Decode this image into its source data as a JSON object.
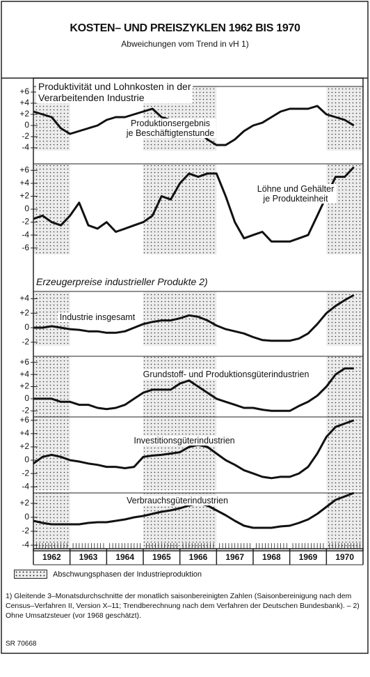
{
  "header": {
    "title": "KOSTEN– UND PREISZYKLEN 1962 BIS 1970",
    "subtitle": "Abweichungen vom Trend in vH 1)"
  },
  "x_axis": {
    "xlim": [
      1962,
      1971
    ],
    "categories": [
      "1962",
      "1963",
      "1964",
      "1965",
      "1966",
      "1967",
      "1968",
      "1969",
      "1970"
    ]
  },
  "shaded_periods": [
    [
      1962,
      1963
    ],
    [
      1965,
      1967
    ],
    [
      1970,
      1971
    ]
  ],
  "legend_label": "Abschwungsphasen der Industrieproduktion",
  "section_heading": "Erzeugerpreise industrieller Produkte 2)",
  "footnote": "1) Gleitende 3–Monatsdurchschnitte der monatlich saisonbereinigten Zahlen (Saisonbereinigung nach dem Census–Verfahren II, Version X–11; Trendberechnung nach dem Verfahren der Deutschen Bundesbank). – 2) Ohne Umsatzsteuer (vor 1968 geschätzt).",
  "source": "SR 70668",
  "chart_data": [
    {
      "type": "line",
      "title": [
        "Produktivität und Lohnkosten in der",
        "Verarbeitenden Industrie"
      ],
      "ylim": [
        -4.5,
        7
      ],
      "yticks": [
        {
          "value": 6,
          "label": "+6"
        },
        {
          "value": 4,
          "label": "+4"
        },
        {
          "value": 2,
          "label": "+2"
        },
        0,
        -2,
        -4
      ],
      "x": [
        1962,
        1962.25,
        1962.5,
        1962.75,
        1963,
        1963.25,
        1963.5,
        1963.75,
        1964,
        1964.25,
        1964.5,
        1964.75,
        1965,
        1965.25,
        1965.5,
        1965.75,
        1966,
        1966.25,
        1966.5,
        1966.75,
        1967,
        1967.25,
        1967.5,
        1967.75,
        1968,
        1968.25,
        1968.5,
        1968.75,
        1969,
        1969.25,
        1969.5,
        1969.75,
        1970,
        1970.25,
        1970.5,
        1970.75
      ],
      "series": [
        {
          "label": [
            "Produktionsergebnis",
            "je Beschäftigtenstunde"
          ],
          "color": "#111111",
          "values": [
            2.5,
            2,
            1.5,
            -0.5,
            -1.5,
            -1,
            -0.5,
            0,
            1,
            1.5,
            1.5,
            2,
            2.5,
            3,
            1.5,
            1,
            0.5,
            0,
            -1,
            -2.5,
            -3.5,
            -3.5,
            -2.5,
            -1,
            0,
            0.5,
            1.5,
            2.5,
            3,
            3,
            3,
            3.5,
            2,
            1.5,
            1,
            0
          ]
        }
      ]
    },
    {
      "type": "line",
      "ylim": [
        -7,
        7
      ],
      "yticks": [
        {
          "value": 6,
          "label": "+6"
        },
        {
          "value": 4,
          "label": "+4"
        },
        {
          "value": 2,
          "label": "+2"
        },
        0,
        -2,
        -4,
        -6
      ],
      "x": [
        1962,
        1962.25,
        1962.5,
        1962.75,
        1963,
        1963.25,
        1963.5,
        1963.75,
        1964,
        1964.25,
        1964.5,
        1964.75,
        1965,
        1965.25,
        1965.5,
        1965.75,
        1966,
        1966.25,
        1966.5,
        1966.75,
        1967,
        1967.25,
        1967.5,
        1967.75,
        1968,
        1968.25,
        1968.5,
        1968.75,
        1969,
        1969.25,
        1969.5,
        1969.75,
        1970,
        1970.25,
        1970.5,
        1970.75
      ],
      "series": [
        {
          "label": [
            "Löhne und Gehälter",
            "je Produkteinheit"
          ],
          "color": "#111111",
          "values": [
            -1.5,
            -1,
            -2,
            -2.5,
            -1,
            1,
            -2.5,
            -3,
            -2,
            -3.5,
            -3,
            -2.5,
            -2,
            -1,
            2,
            1.5,
            4,
            5.5,
            5,
            5.5,
            5.5,
            2,
            -2,
            -4.5,
            -4,
            -3.5,
            -5,
            -5,
            -5,
            -4.5,
            -4,
            -1,
            2,
            5,
            5,
            6.5
          ]
        }
      ]
    },
    {
      "type": "line",
      "ylim": [
        -2.5,
        5
      ],
      "yticks": [
        {
          "value": 4,
          "label": "+4"
        },
        {
          "value": 2,
          "label": "+2"
        },
        0,
        -2
      ],
      "x": [
        1962,
        1962.25,
        1962.5,
        1962.75,
        1963,
        1963.25,
        1963.5,
        1963.75,
        1964,
        1964.25,
        1964.5,
        1964.75,
        1965,
        1965.25,
        1965.5,
        1965.75,
        1966,
        1966.25,
        1966.5,
        1966.75,
        1967,
        1967.25,
        1967.5,
        1967.75,
        1968,
        1968.25,
        1968.5,
        1968.75,
        1969,
        1969.25,
        1969.5,
        1969.75,
        1970,
        1970.25,
        1970.5,
        1970.75
      ],
      "series": [
        {
          "label": [
            "Industrie insgesamt"
          ],
          "color": "#111111",
          "values": [
            0,
            0,
            0.2,
            0,
            -0.2,
            -0.3,
            -0.5,
            -0.5,
            -0.7,
            -0.7,
            -0.5,
            0,
            0.5,
            0.8,
            1,
            1,
            1.3,
            1.7,
            1.5,
            1,
            0.3,
            -0.2,
            -0.5,
            -0.8,
            -1.3,
            -1.7,
            -1.8,
            -1.8,
            -1.8,
            -1.5,
            -0.8,
            0.5,
            2,
            3,
            3.8,
            4.5
          ]
        }
      ]
    },
    {
      "type": "line",
      "ylim": [
        -3,
        7
      ],
      "yticks": [
        {
          "value": 6,
          "label": "+6"
        },
        {
          "value": 4,
          "label": "+4"
        },
        {
          "value": 2,
          "label": "+2"
        },
        0,
        -2
      ],
      "x": [
        1962,
        1962.25,
        1962.5,
        1962.75,
        1963,
        1963.25,
        1963.5,
        1963.75,
        1964,
        1964.25,
        1964.5,
        1964.75,
        1965,
        1965.25,
        1965.5,
        1965.75,
        1966,
        1966.25,
        1966.5,
        1966.75,
        1967,
        1967.25,
        1967.5,
        1967.75,
        1968,
        1968.25,
        1968.5,
        1968.75,
        1969,
        1969.25,
        1969.5,
        1969.75,
        1970,
        1970.25,
        1970.5,
        1970.75
      ],
      "series": [
        {
          "label": [
            "Grundstoff- und Produktionsgüterindustrien"
          ],
          "color": "#111111",
          "values": [
            0,
            0,
            0,
            -0.5,
            -0.5,
            -1,
            -1,
            -1.5,
            -1.7,
            -1.5,
            -1,
            0,
            1,
            1.5,
            1.5,
            1.5,
            2.5,
            3,
            2,
            1,
            0,
            -0.5,
            -1,
            -1.5,
            -1.5,
            -1.8,
            -2,
            -2,
            -2,
            -1.2,
            -0.5,
            0.5,
            2,
            4,
            5,
            5
          ]
        }
      ]
    },
    {
      "type": "line",
      "ylim": [
        -4.5,
        6.5
      ],
      "yticks": [
        {
          "value": 6,
          "label": "+6"
        },
        {
          "value": 4,
          "label": "+4"
        },
        {
          "value": 2,
          "label": "+2"
        },
        0,
        -2,
        -4
      ],
      "x": [
        1962,
        1962.25,
        1962.5,
        1962.75,
        1963,
        1963.25,
        1963.5,
        1963.75,
        1964,
        1964.25,
        1964.5,
        1964.75,
        1965,
        1965.25,
        1965.5,
        1965.75,
        1966,
        1966.25,
        1966.5,
        1966.75,
        1967,
        1967.25,
        1967.5,
        1967.75,
        1968,
        1968.25,
        1968.5,
        1968.75,
        1969,
        1969.25,
        1969.5,
        1969.75,
        1970,
        1970.25,
        1970.5,
        1970.75
      ],
      "series": [
        {
          "label": [
            "Investitionsgüterindustrien"
          ],
          "color": "#111111",
          "values": [
            -0.5,
            0.5,
            0.8,
            0.5,
            0,
            -0.2,
            -0.5,
            -0.7,
            -1,
            -1,
            -1.2,
            -1,
            0.5,
            0.7,
            0.8,
            1,
            1.2,
            2,
            2.3,
            2,
            1,
            0,
            -0.7,
            -1.5,
            -2,
            -2.5,
            -2.7,
            -2.5,
            -2.5,
            -2,
            -1,
            1,
            3.5,
            5,
            5.5,
            6
          ]
        }
      ]
    },
    {
      "type": "line",
      "ylim": [
        -4.5,
        3.5
      ],
      "yticks": [
        {
          "value": 2,
          "label": "+2"
        },
        0,
        -2,
        -4
      ],
      "x": [
        1962,
        1962.25,
        1962.5,
        1962.75,
        1963,
        1963.25,
        1963.5,
        1963.75,
        1964,
        1964.25,
        1964.5,
        1964.75,
        1965,
        1965.25,
        1965.5,
        1965.75,
        1966,
        1966.25,
        1966.5,
        1966.75,
        1967,
        1967.25,
        1967.5,
        1967.75,
        1968,
        1968.25,
        1968.5,
        1968.75,
        1969,
        1969.25,
        1969.5,
        1969.75,
        1970,
        1970.25,
        1970.5,
        1970.75
      ],
      "series": [
        {
          "label": [
            "Verbrauchsgüterindustrien"
          ],
          "color": "#111111",
          "values": [
            -0.5,
            -0.8,
            -1,
            -1,
            -1,
            -1,
            -0.8,
            -0.7,
            -0.7,
            -0.5,
            -0.3,
            0,
            0.2,
            0.5,
            0.8,
            1,
            1.3,
            1.7,
            2,
            1.7,
            1,
            0.3,
            -0.5,
            -1.2,
            -1.5,
            -1.5,
            -1.5,
            -1.3,
            -1.2,
            -0.8,
            -0.3,
            0.5,
            1.5,
            2.5,
            3,
            3.5
          ]
        }
      ]
    }
  ]
}
